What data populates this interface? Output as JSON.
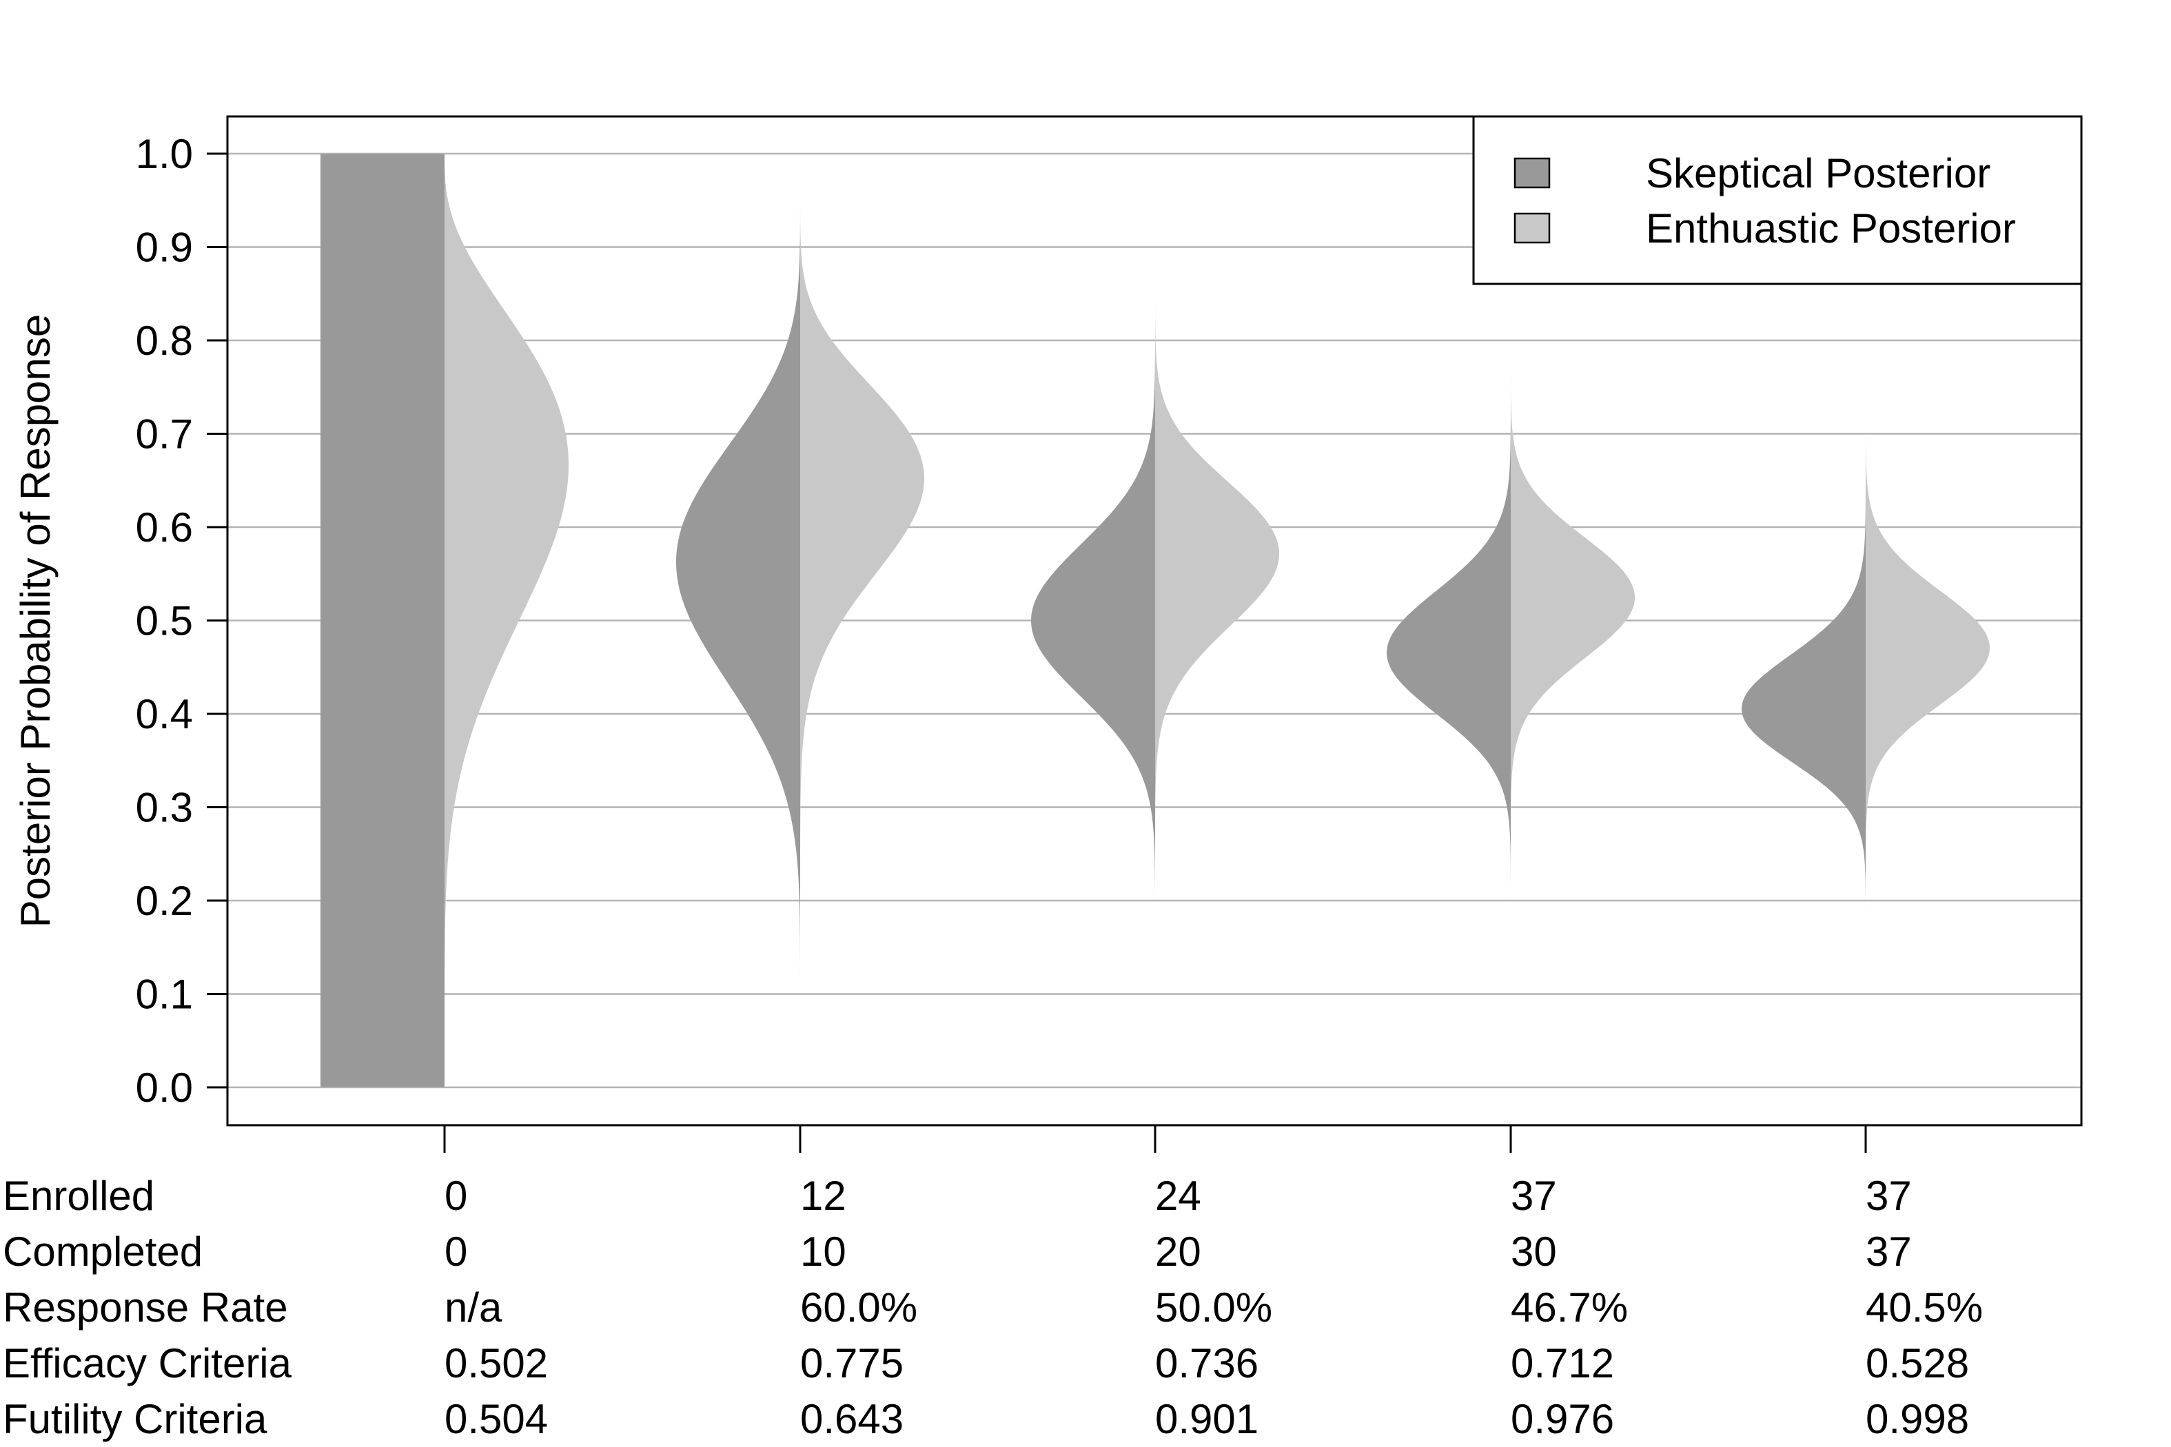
{
  "chart_data": {
    "type": "violin",
    "ylabel": "Posterior Probability of Response",
    "ylim": [
      0.0,
      1.0
    ],
    "yticks": [
      "0.0",
      "0.1",
      "0.2",
      "0.3",
      "0.4",
      "0.5",
      "0.6",
      "0.7",
      "0.8",
      "0.9",
      "1.0"
    ],
    "xticks": [
      "0",
      "12",
      "24",
      "37",
      "37"
    ],
    "grid": true,
    "legend": {
      "position": "top-right",
      "entries": [
        {
          "name": "Skeptical Posterior",
          "color": "#999999"
        },
        {
          "name": "Enthuastic Posterior",
          "color": "#c8c8c8"
        }
      ]
    },
    "series": [
      {
        "name": "Skeptical Posterior",
        "color": "#999999",
        "side": "left",
        "distributions": [
          {
            "a": 1.0,
            "b": 1.0
          },
          {
            "a": 10.0,
            "b": 8.0
          },
          {
            "a": 20.0,
            "b": 20.0
          },
          {
            "a": 28.0,
            "b": 32.0
          },
          {
            "a": 31.0,
            "b": 45.0
          }
        ]
      },
      {
        "name": "Enthuastic Posterior",
        "color": "#c8c8c8",
        "side": "right",
        "distributions": [
          {
            "a": 7.0,
            "b": 4.0
          },
          {
            "a": 16.0,
            "b": 9.0
          },
          {
            "a": 25.0,
            "b": 19.0
          },
          {
            "a": 33.0,
            "b": 30.0
          },
          {
            "a": 33.0,
            "b": 37.0
          }
        ]
      }
    ],
    "table": {
      "rows": [
        {
          "label": "Enrolled",
          "values": [
            "0",
            "12",
            "24",
            "37",
            "37"
          ]
        },
        {
          "label": "Completed",
          "values": [
            "0",
            "10",
            "20",
            "30",
            "37"
          ]
        },
        {
          "label": "Response Rate",
          "values": [
            "n/a",
            "60.0%",
            "50.0%",
            "46.7%",
            "40.5%"
          ]
        },
        {
          "label": "Efficacy Criteria",
          "values": [
            "0.502",
            "0.775",
            "0.736",
            "0.712",
            "0.528"
          ]
        },
        {
          "label": "Futility Criteria",
          "values": [
            "0.504",
            "0.643",
            "0.901",
            "0.976",
            "0.998"
          ]
        }
      ]
    }
  }
}
